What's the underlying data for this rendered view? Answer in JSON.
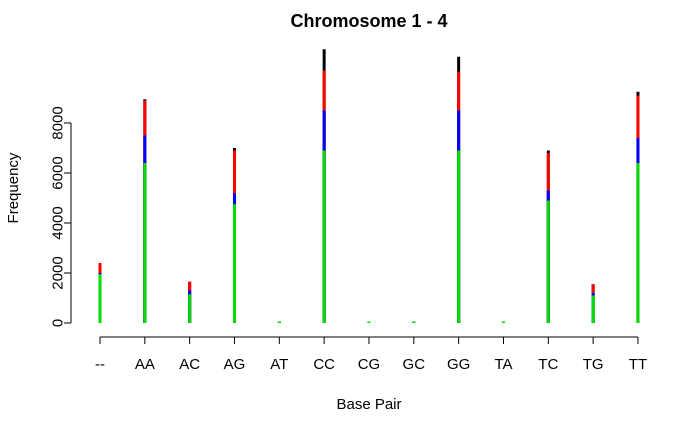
{
  "chart_data": {
    "type": "bar",
    "title": "Chromosome 1 - 4",
    "xlabel": "Base Pair",
    "ylabel": "Frequency",
    "ylim": [
      0,
      10000
    ],
    "yticks": [
      0,
      2000,
      4000,
      6000,
      8000
    ],
    "grid": false,
    "categories": [
      "--",
      "AA",
      "AC",
      "AG",
      "AT",
      "CC",
      "CG",
      "GC",
      "GG",
      "TA",
      "TC",
      "TG",
      "TT"
    ],
    "series": [
      {
        "color": "#000000",
        "values": [
          2400,
          8950,
          1650,
          7000,
          50,
          10950,
          50,
          50,
          10650,
          50,
          6900,
          1550,
          9250
        ]
      },
      {
        "color": "#ff0000",
        "values": [
          2400,
          8900,
          1650,
          6900,
          50,
          10100,
          50,
          50,
          10050,
          50,
          6800,
          1550,
          9100
        ]
      },
      {
        "color": "#0000ff",
        "values": [
          2000,
          7500,
          1300,
          5200,
          30,
          8500,
          30,
          30,
          8500,
          30,
          5300,
          1200,
          7400
        ]
      },
      {
        "color": "#00dd00",
        "values": [
          1950,
          6400,
          1150,
          4750,
          20,
          6900,
          20,
          20,
          6900,
          20,
          4900,
          1100,
          6400
        ]
      }
    ]
  }
}
